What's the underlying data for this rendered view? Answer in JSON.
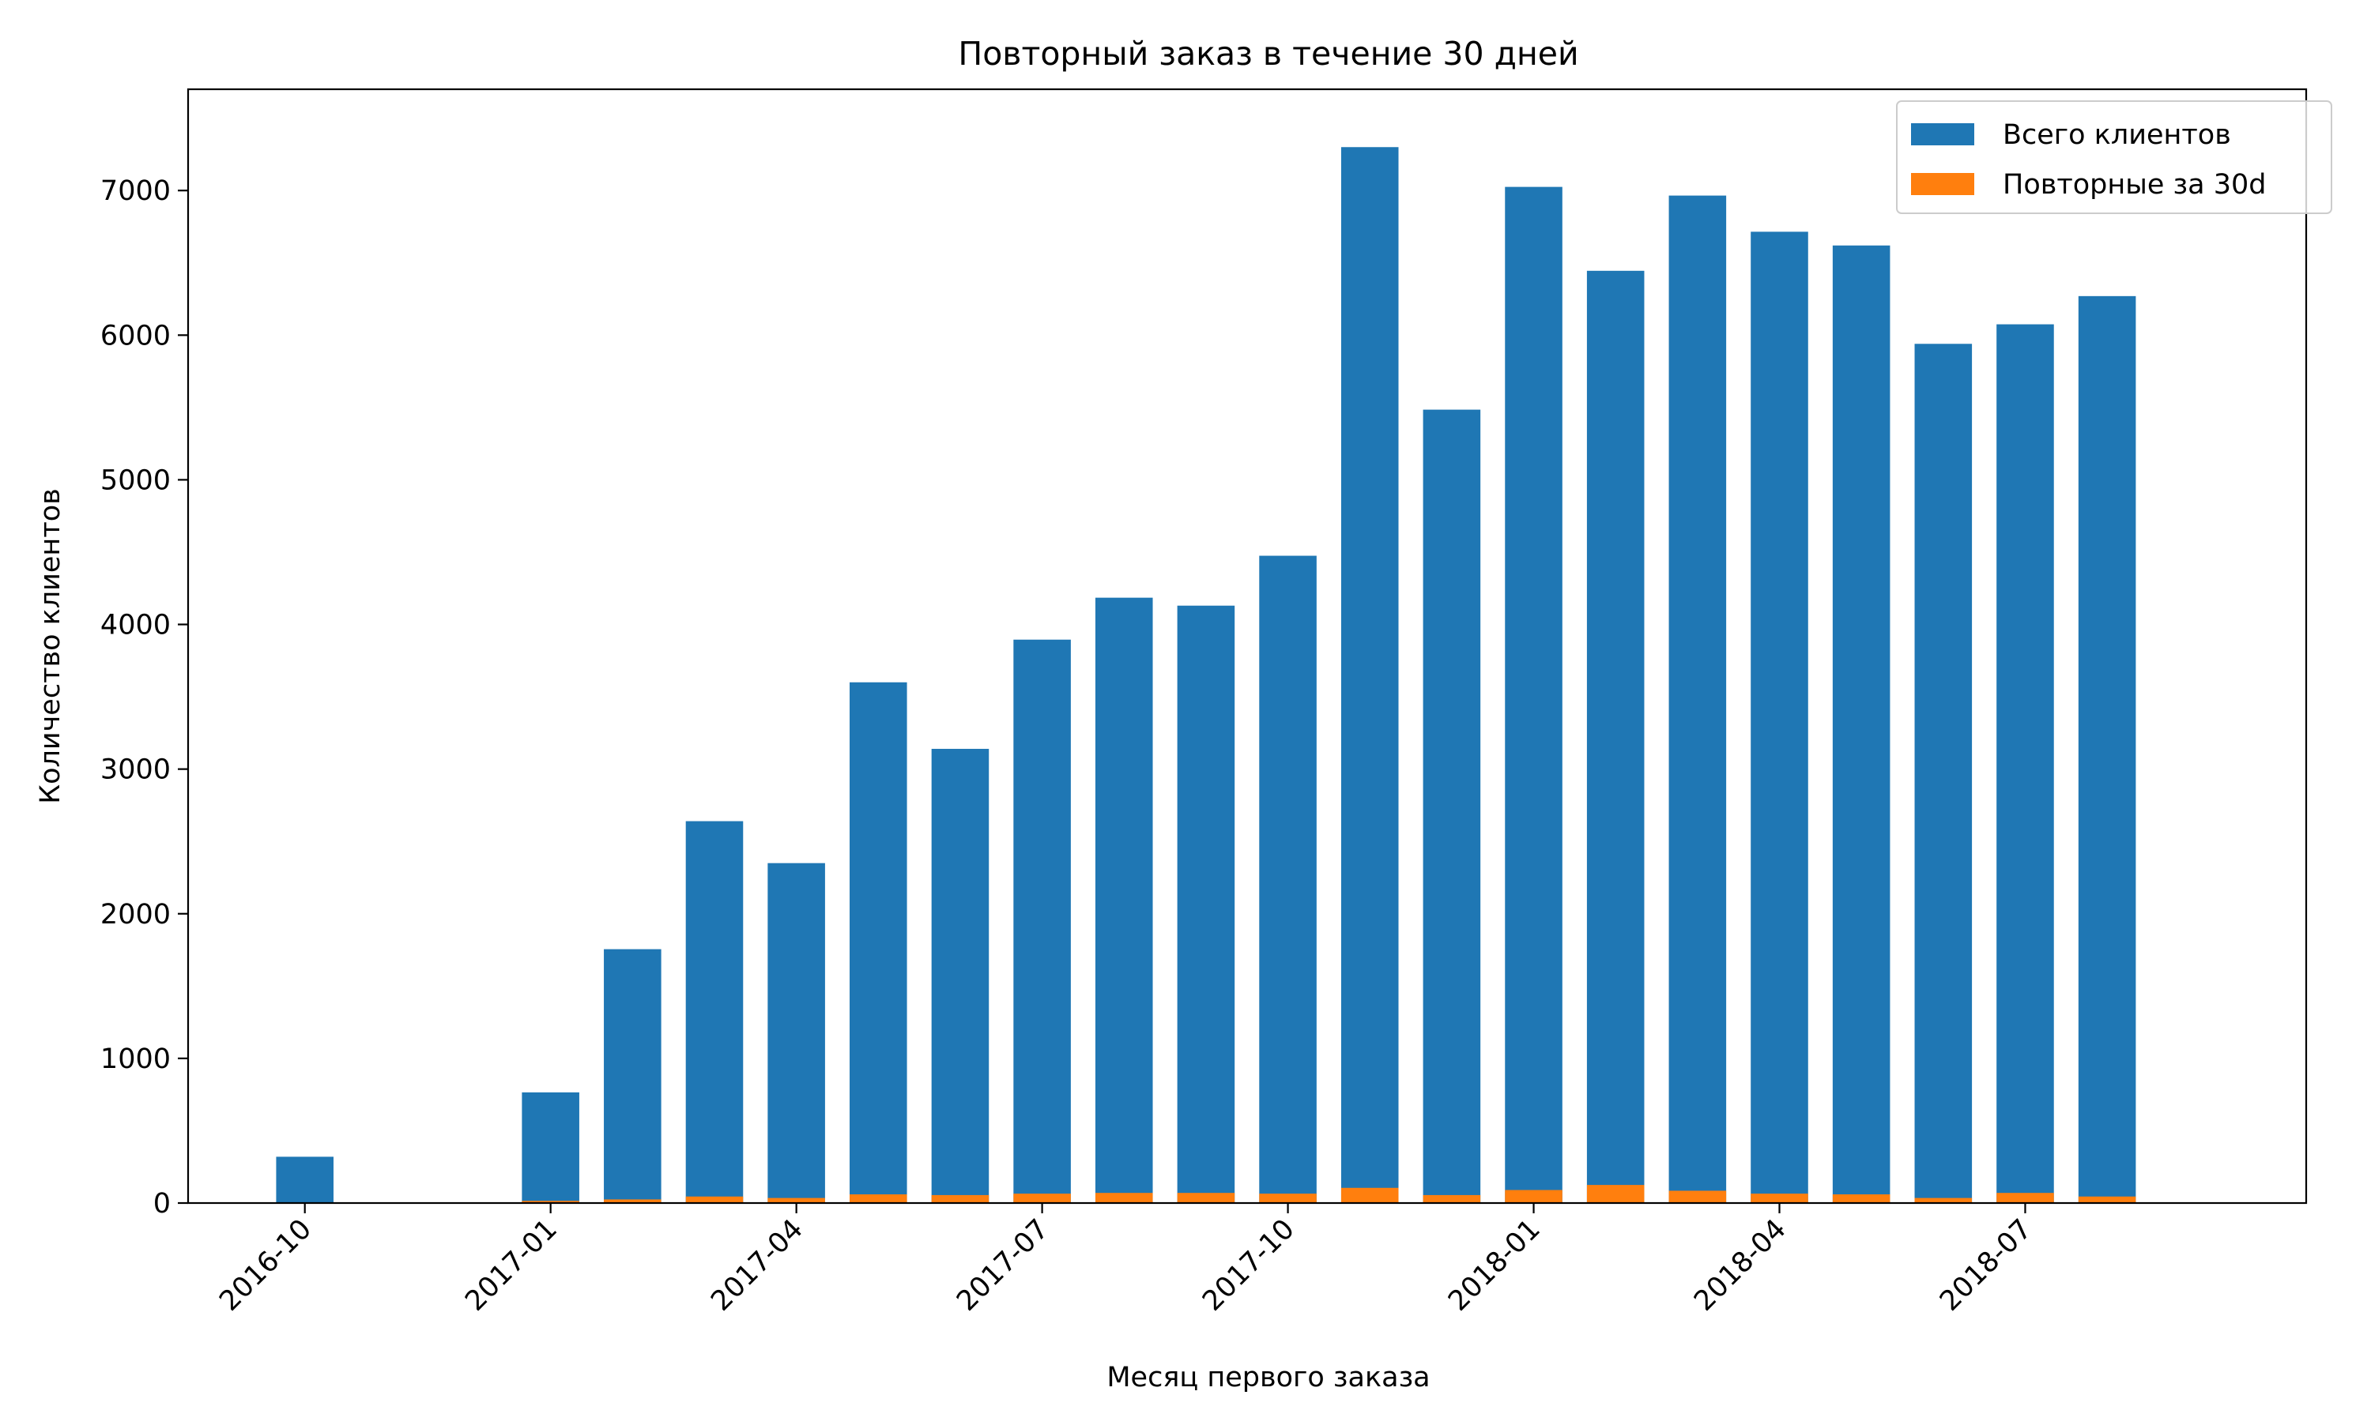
{
  "chart_data": {
    "type": "bar",
    "stacking": "overlay",
    "title": "Повторный заказ в течение 30 дней",
    "xlabel": "Месяц первого заказа",
    "ylabel": "Количество клиентов",
    "ylim": [
      0,
      7700
    ],
    "yticks": [
      0,
      1000,
      2000,
      3000,
      4000,
      5000,
      6000,
      7000
    ],
    "ytick_labels": [
      "0",
      "1000",
      "2000",
      "3000",
      "4000",
      "5000",
      "6000",
      "7000"
    ],
    "xticks": [
      {
        "month": "2016-10",
        "label": "2016-10"
      },
      {
        "month": "2017-01",
        "label": "2017-01"
      },
      {
        "month": "2017-04",
        "label": "2017-04"
      },
      {
        "month": "2017-07",
        "label": "2017-07"
      },
      {
        "month": "2017-10",
        "label": "2017-10"
      },
      {
        "month": "2018-01",
        "label": "2018-01"
      },
      {
        "month": "2018-04",
        "label": "2018-04"
      },
      {
        "month": "2018-07",
        "label": "2018-07"
      }
    ],
    "x_range": [
      "2016-08",
      "2018-10"
    ],
    "grid": false,
    "legend_position": "top-right",
    "categories": [
      "2016-10",
      "2017-01",
      "2017-02",
      "2017-03",
      "2017-04",
      "2017-05",
      "2017-06",
      "2017-07",
      "2017-08",
      "2017-09",
      "2017-10",
      "2017-11",
      "2017-12",
      "2018-01",
      "2018-02",
      "2018-03",
      "2018-04",
      "2018-05",
      "2018-06",
      "2018-07",
      "2018-08"
    ],
    "series": [
      {
        "name": "Всего клиентов",
        "color": "#1f77b4",
        "values": [
          320,
          765,
          1755,
          2640,
          2350,
          3600,
          3140,
          3895,
          4185,
          4130,
          4475,
          7300,
          5485,
          7025,
          6445,
          6965,
          6715,
          6620,
          5940,
          6075,
          6270
        ]
      },
      {
        "name": "Повторные за 30d",
        "color": "#ff7f0e",
        "values": [
          2,
          15,
          25,
          45,
          35,
          60,
          55,
          65,
          70,
          70,
          65,
          105,
          55,
          90,
          125,
          85,
          65,
          60,
          35,
          70,
          45
        ]
      }
    ]
  }
}
